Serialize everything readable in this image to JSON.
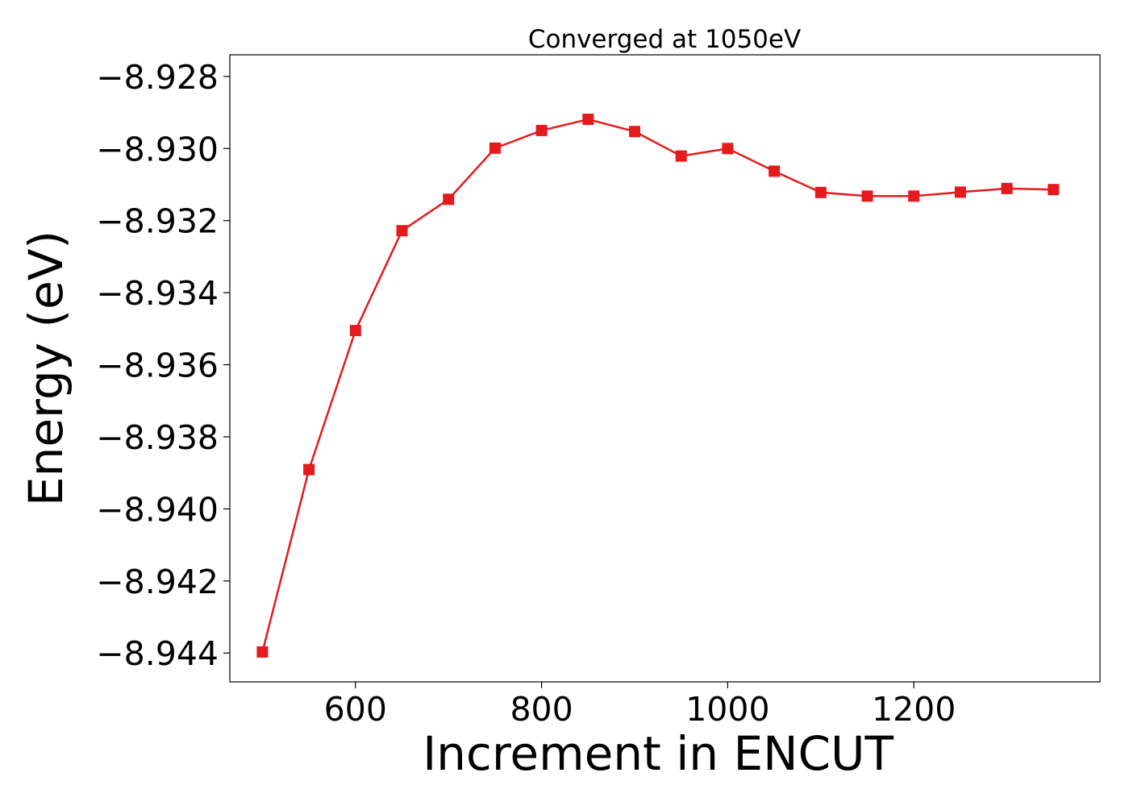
{
  "chart_data": {
    "type": "line",
    "title": "Converged at 1050eV",
    "xlabel": "Increment in ENCUT",
    "ylabel": "Energy (eV)",
    "xlim": [
      465,
      1400
    ],
    "ylim": [
      -8.9448,
      -8.9274
    ],
    "xticks": [
      600,
      800,
      1000,
      1200
    ],
    "yticks": [
      -8.928,
      -8.93,
      -8.932,
      -8.934,
      -8.936,
      -8.938,
      -8.94,
      -8.942,
      -8.944
    ],
    "ytick_labels": [
      "−8.928",
      "−8.930",
      "−8.932",
      "−8.934",
      "−8.936",
      "−8.938",
      "−8.940",
      "−8.942",
      "−8.944"
    ],
    "grid": false,
    "legend": "none",
    "series": [
      {
        "color": "#e41a1c",
        "marker": "square",
        "x": [
          500,
          550,
          600,
          650,
          700,
          750,
          800,
          850,
          900,
          950,
          1000,
          1050,
          1100,
          1150,
          1200,
          1250,
          1300,
          1350
        ],
        "y": [
          -8.94397,
          -8.93891,
          -8.93505,
          -8.93228,
          -8.93141,
          -8.92999,
          -8.9295,
          -8.92919,
          -8.92953,
          -8.93021,
          -8.93,
          -8.93063,
          -8.93122,
          -8.93132,
          -8.93132,
          -8.93121,
          -8.93111,
          -8.93114
        ]
      }
    ]
  }
}
